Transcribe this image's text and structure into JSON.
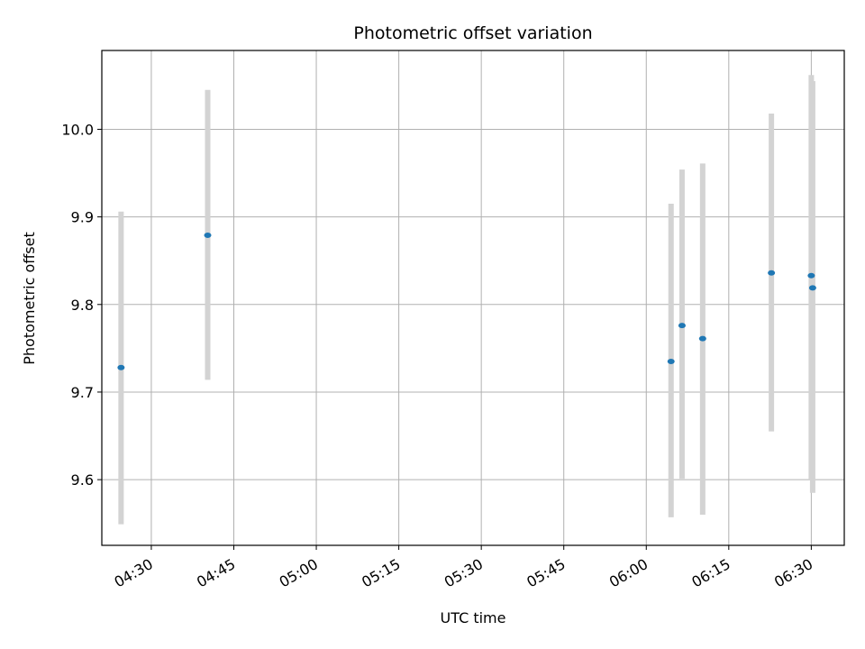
{
  "chart_data": {
    "type": "scatter",
    "title": "Photometric offset variation",
    "xlabel": "UTC time",
    "ylabel": "Photometric offset",
    "x_axis_type": "time",
    "xlim": [
      "04:21",
      "06:36"
    ],
    "ylim": [
      9.525,
      10.09
    ],
    "x_ticks": [
      "04:30",
      "04:45",
      "05:00",
      "05:15",
      "05:30",
      "05:45",
      "06:00",
      "06:15",
      "06:30"
    ],
    "y_ticks": [
      9.6,
      9.7,
      9.8,
      9.9,
      10.0
    ],
    "y_tick_labels": [
      "9.6",
      "9.7",
      "9.8",
      "9.9",
      "10.0"
    ],
    "grid": true,
    "colors": {
      "point": "#1f77b4",
      "errorbar": "#d3d3d3",
      "grid": "#b0b0b0"
    },
    "points": [
      {
        "x": "04:24:30",
        "y": 9.728,
        "y_low": 9.549,
        "y_high": 9.906
      },
      {
        "x": "04:40:15",
        "y": 9.879,
        "y_low": 9.714,
        "y_high": 10.045
      },
      {
        "x": "06:04:30",
        "y": 9.735,
        "y_low": 9.557,
        "y_high": 9.915
      },
      {
        "x": "06:06:30",
        "y": 9.776,
        "y_low": 9.601,
        "y_high": 9.954
      },
      {
        "x": "06:10:15",
        "y": 9.761,
        "y_low": 9.56,
        "y_high": 9.961
      },
      {
        "x": "06:22:45",
        "y": 9.836,
        "y_low": 9.655,
        "y_high": 10.018
      },
      {
        "x": "06:30:00",
        "y": 9.833,
        "y_low": 9.6,
        "y_high": 10.062
      },
      {
        "x": "06:30:15",
        "y": 9.819,
        "y_low": 9.585,
        "y_high": 10.055
      }
    ]
  }
}
